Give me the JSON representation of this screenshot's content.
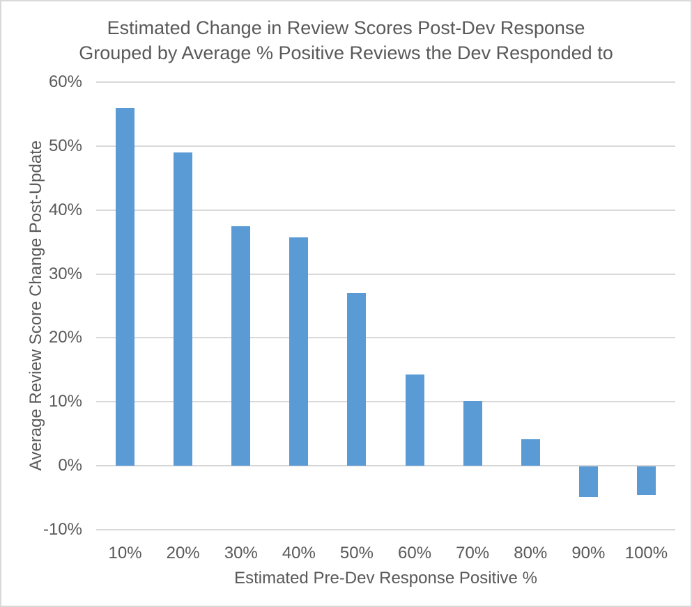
{
  "chart_data": {
    "type": "bar",
    "title": "Estimated Change in Review Scores Post-Dev Response Grouped by Average % Positive Reviews the Dev Responded to",
    "title_line1": "Estimated Change in Review Scores Post-Dev Response",
    "title_line2": "Grouped by Average % Positive Reviews the Dev Responded to",
    "xlabel": "Estimated Pre-Dev Response Positive %",
    "ylabel": "Average Review Score Change Post-Update",
    "categories": [
      "10%",
      "20%",
      "30%",
      "40%",
      "50%",
      "60%",
      "70%",
      "80%",
      "90%",
      "100%"
    ],
    "values": [
      56.0,
      49.0,
      37.5,
      35.7,
      27.0,
      14.3,
      10.1,
      4.1,
      -4.8,
      -4.5
    ],
    "ylim": [
      -10,
      60
    ],
    "ytick_step": 10,
    "yticks": [
      60,
      50,
      40,
      30,
      20,
      10,
      0,
      -10
    ],
    "ytick_labels": [
      "60%",
      "50%",
      "40%",
      "30%",
      "20%",
      "10%",
      "0%",
      "-10%"
    ],
    "grid": true,
    "legend_position": "none",
    "colors": {
      "bar": "#5b9bd5",
      "text": "#595959",
      "gridline": "#d9d9d9",
      "border": "#d9d9d9",
      "background": "#ffffff"
    }
  }
}
